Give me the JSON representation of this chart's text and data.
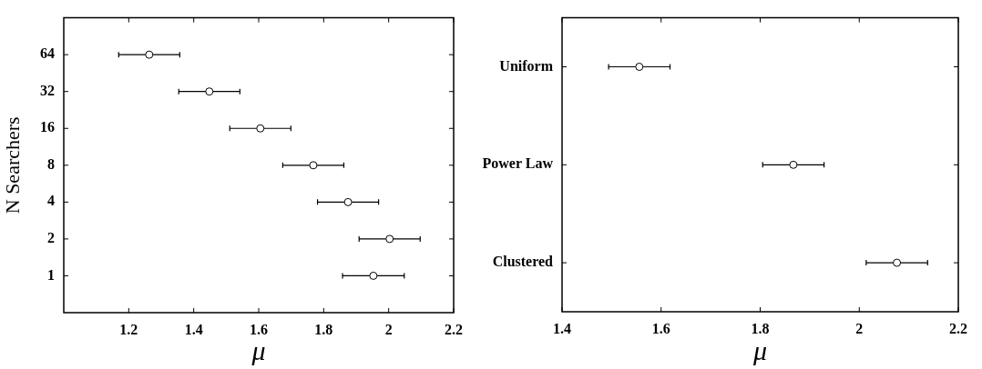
{
  "chart_data": [
    {
      "type": "scatter",
      "orientation": "horizontal",
      "xlabel": "μ",
      "ylabel": "N Searchers",
      "categories": [
        "64",
        "32",
        "16",
        "8",
        "4",
        "2",
        "1"
      ],
      "series": [
        {
          "color": "#000000",
          "values": [
            1.263,
            1.448,
            1.605,
            1.768,
            1.875,
            2.003,
            1.953
          ],
          "errors": [
            0.094,
            0.094,
            0.094,
            0.094,
            0.094,
            0.094,
            0.095
          ]
        }
      ],
      "xlim": [
        1.0,
        2.2
      ],
      "xticks": [
        1.2,
        1.4,
        1.6,
        1.8,
        2,
        2.2
      ],
      "marker": "circle",
      "grid": false,
      "legend": false
    },
    {
      "type": "scatter",
      "orientation": "horizontal",
      "xlabel": "μ",
      "categories": [
        "Uniform",
        "Power Law",
        "Clustered"
      ],
      "series": [
        {
          "color": "#000000",
          "values": [
            1.556,
            1.867,
            2.076
          ],
          "errors": [
            0.062,
            0.062,
            0.062
          ]
        }
      ],
      "xlim": [
        1.4,
        2.2
      ],
      "xticks": [
        1.4,
        1.6,
        1.8,
        2,
        2.2
      ],
      "marker": "circle",
      "grid": false,
      "legend": false
    }
  ]
}
